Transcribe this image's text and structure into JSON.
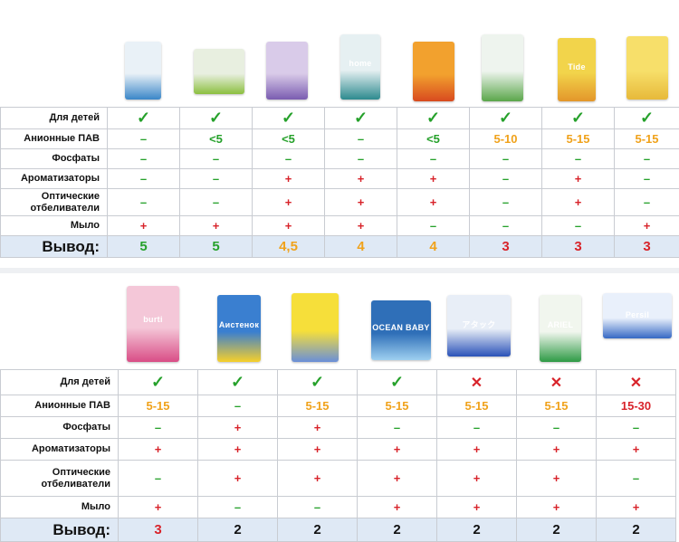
{
  "colors": {
    "green": "#26a12b",
    "red": "#d8232a",
    "orange": "#f0a21b",
    "summary_bg": "#dfe9f5"
  },
  "table1": {
    "rows": [
      {
        "label": "Для детей",
        "cells": [
          {
            "t": "✓",
            "c": "check"
          },
          {
            "t": "✓",
            "c": "check"
          },
          {
            "t": "✓",
            "c": "check"
          },
          {
            "t": "✓",
            "c": "check"
          },
          {
            "t": "✓",
            "c": "check"
          },
          {
            "t": "✓",
            "c": "check"
          },
          {
            "t": "✓",
            "c": "check"
          },
          {
            "t": "✓",
            "c": "check"
          }
        ]
      },
      {
        "label": "Анионные ПАВ",
        "cells": [
          {
            "t": "–",
            "c": "g"
          },
          {
            "t": "<5",
            "c": "g"
          },
          {
            "t": "<5",
            "c": "g"
          },
          {
            "t": "–",
            "c": "g"
          },
          {
            "t": "<5",
            "c": "g"
          },
          {
            "t": "5-10",
            "c": "o"
          },
          {
            "t": "5-15",
            "c": "o"
          },
          {
            "t": "5-15",
            "c": "o"
          }
        ]
      },
      {
        "label": "Фосфаты",
        "cells": [
          {
            "t": "–",
            "c": "g"
          },
          {
            "t": "–",
            "c": "g"
          },
          {
            "t": "–",
            "c": "g"
          },
          {
            "t": "–",
            "c": "g"
          },
          {
            "t": "–",
            "c": "g"
          },
          {
            "t": "–",
            "c": "g"
          },
          {
            "t": "–",
            "c": "g"
          },
          {
            "t": "–",
            "c": "g"
          }
        ]
      },
      {
        "label": "Ароматизаторы",
        "cells": [
          {
            "t": "–",
            "c": "g"
          },
          {
            "t": "–",
            "c": "g"
          },
          {
            "t": "+",
            "c": "r"
          },
          {
            "t": "+",
            "c": "r"
          },
          {
            "t": "+",
            "c": "r"
          },
          {
            "t": "–",
            "c": "g"
          },
          {
            "t": "+",
            "c": "r"
          },
          {
            "t": "–",
            "c": "g"
          }
        ]
      },
      {
        "label": "Оптические отбеливатели",
        "cells": [
          {
            "t": "–",
            "c": "g"
          },
          {
            "t": "–",
            "c": "g"
          },
          {
            "t": "+",
            "c": "r"
          },
          {
            "t": "+",
            "c": "r"
          },
          {
            "t": "+",
            "c": "r"
          },
          {
            "t": "–",
            "c": "g"
          },
          {
            "t": "+",
            "c": "r"
          },
          {
            "t": "–",
            "c": "g"
          }
        ]
      },
      {
        "label": "Мыло",
        "cells": [
          {
            "t": "+",
            "c": "r"
          },
          {
            "t": "+",
            "c": "r"
          },
          {
            "t": "+",
            "c": "r"
          },
          {
            "t": "+",
            "c": "r"
          },
          {
            "t": "–",
            "c": "g"
          },
          {
            "t": "–",
            "c": "g"
          },
          {
            "t": "–",
            "c": "g"
          },
          {
            "t": "+",
            "c": "r"
          }
        ]
      }
    ],
    "summary": {
      "label": "Вывод:",
      "cells": [
        {
          "t": "5",
          "c": "g"
        },
        {
          "t": "5",
          "c": "g"
        },
        {
          "t": "4,5",
          "c": "o"
        },
        {
          "t": "4",
          "c": "o"
        },
        {
          "t": "4",
          "c": "o"
        },
        {
          "t": "3",
          "c": "r"
        },
        {
          "t": "3",
          "c": "r"
        },
        {
          "t": "3",
          "c": "r"
        }
      ]
    },
    "packs": [
      {
        "bg": "#e9f1f7",
        "accent": "#3a86c8",
        "text": ""
      },
      {
        "bg": "#e8efe0",
        "accent": "#8cbf3f",
        "text": ""
      },
      {
        "bg": "#d9cbe9",
        "accent": "#7a5cb0",
        "text": ""
      },
      {
        "bg": "#e6f0f2",
        "accent": "#2d8a8e",
        "text": "home"
      },
      {
        "bg": "#f2a12e",
        "accent": "#d84a1f",
        "text": ""
      },
      {
        "bg": "#eef4ee",
        "accent": "#5aa64a",
        "text": ""
      },
      {
        "bg": "#f2d44b",
        "accent": "#e3962a",
        "text": "Tide"
      },
      {
        "bg": "#f7df6a",
        "accent": "#e7b93a",
        "text": ""
      }
    ]
  },
  "table2": {
    "rows": [
      {
        "label": "Для детей",
        "cells": [
          {
            "t": "✓",
            "c": "check"
          },
          {
            "t": "✓",
            "c": "check"
          },
          {
            "t": "✓",
            "c": "check"
          },
          {
            "t": "✓",
            "c": "check"
          },
          {
            "t": "✕",
            "c": "cross"
          },
          {
            "t": "✕",
            "c": "cross"
          },
          {
            "t": "✕",
            "c": "cross"
          }
        ]
      },
      {
        "label": "Анионные ПАВ",
        "cells": [
          {
            "t": "5-15",
            "c": "o"
          },
          {
            "t": "–",
            "c": "g"
          },
          {
            "t": "5-15",
            "c": "o"
          },
          {
            "t": "5-15",
            "c": "o"
          },
          {
            "t": "5-15",
            "c": "o"
          },
          {
            "t": "5-15",
            "c": "o"
          },
          {
            "t": "15-30",
            "c": "r"
          }
        ]
      },
      {
        "label": "Фосфаты",
        "cells": [
          {
            "t": "–",
            "c": "g"
          },
          {
            "t": "+",
            "c": "r"
          },
          {
            "t": "+",
            "c": "r"
          },
          {
            "t": "–",
            "c": "g"
          },
          {
            "t": "–",
            "c": "g"
          },
          {
            "t": "–",
            "c": "g"
          },
          {
            "t": "–",
            "c": "g"
          }
        ]
      },
      {
        "label": "Ароматизаторы",
        "cells": [
          {
            "t": "+",
            "c": "r"
          },
          {
            "t": "+",
            "c": "r"
          },
          {
            "t": "+",
            "c": "r"
          },
          {
            "t": "+",
            "c": "r"
          },
          {
            "t": "+",
            "c": "r"
          },
          {
            "t": "+",
            "c": "r"
          },
          {
            "t": "+",
            "c": "r"
          }
        ]
      },
      {
        "label": "Оптические отбеливатели",
        "cells": [
          {
            "t": "–",
            "c": "g"
          },
          {
            "t": "+",
            "c": "r"
          },
          {
            "t": "+",
            "c": "r"
          },
          {
            "t": "+",
            "c": "r"
          },
          {
            "t": "+",
            "c": "r"
          },
          {
            "t": "+",
            "c": "r"
          },
          {
            "t": "–",
            "c": "g"
          }
        ]
      },
      {
        "label": "Мыло",
        "cells": [
          {
            "t": "+",
            "c": "r"
          },
          {
            "t": "–",
            "c": "g"
          },
          {
            "t": "–",
            "c": "g"
          },
          {
            "t": "+",
            "c": "r"
          },
          {
            "t": "+",
            "c": "r"
          },
          {
            "t": "+",
            "c": "r"
          },
          {
            "t": "+",
            "c": "r"
          }
        ]
      }
    ],
    "summary": {
      "label": "Вывод:",
      "cells": [
        {
          "t": "3",
          "c": "r"
        },
        {
          "t": "2",
          "c": "g0"
        },
        {
          "t": "2",
          "c": "g0"
        },
        {
          "t": "2",
          "c": "g0"
        },
        {
          "t": "2",
          "c": "g0"
        },
        {
          "t": "2",
          "c": "g0"
        },
        {
          "t": "2",
          "c": "g0"
        }
      ]
    },
    "packs": [
      {
        "bg": "#f4c7d8",
        "accent": "#d94d86",
        "text": "burti"
      },
      {
        "bg": "#3a7fd0",
        "accent": "#f6d02b",
        "text": "Аистенок"
      },
      {
        "bg": "#f6df3a",
        "accent": "#6a8fd8",
        "text": ""
      },
      {
        "bg": "#2f6fb8",
        "accent": "#9ed0f0",
        "text": "OCEAN BABY"
      },
      {
        "bg": "#e8eef7",
        "accent": "#2a52b8",
        "text": "アタック"
      },
      {
        "bg": "#f1f6ee",
        "accent": "#2e9a45",
        "text": "ARIEL"
      },
      {
        "bg": "#e9f0fb",
        "accent": "#3568c4",
        "text": "Persil"
      }
    ]
  }
}
